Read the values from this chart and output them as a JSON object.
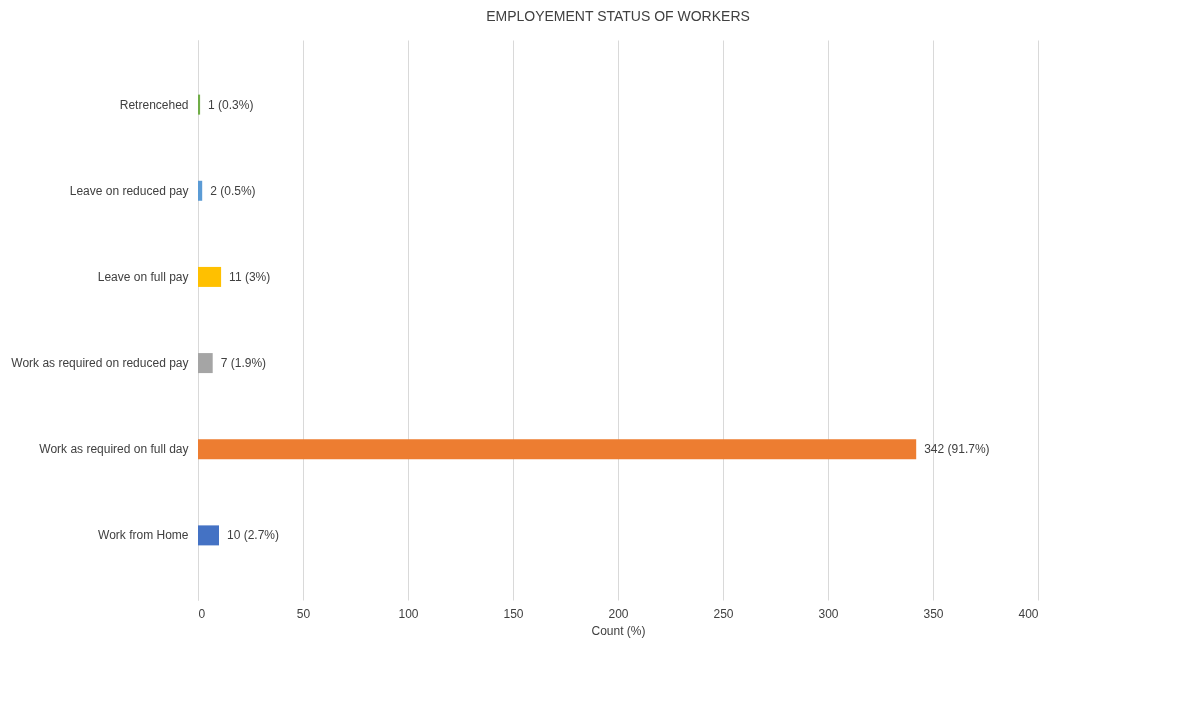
{
  "chart_data": {
    "type": "bar",
    "orientation": "horizontal",
    "title": "EMPLOYEMENT STATUS OF WORKERS",
    "xlabel": "Count (%)",
    "categories": [
      "Retrencehed",
      "Leave on reduced pay",
      "Leave on full pay",
      "Work as required on reduced pay",
      "Work as required on full day",
      "Work from Home"
    ],
    "values": [
      1,
      2,
      11,
      7,
      342,
      10
    ],
    "colors": [
      "#70ad47",
      "#5b9bd5",
      "#ffc000",
      "#a5a5a5",
      "#ed7d31",
      "#4472c4"
    ],
    "value_labels": [
      "1  (0.3%)",
      "2 (0.5%)",
      "11 (3%)",
      "7 (1.9%)",
      "342 (91.7%)",
      "10 (2.7%)"
    ],
    "xlim": [
      0,
      400
    ],
    "xticks": [
      0,
      50,
      100,
      150,
      200,
      250,
      300,
      350,
      400
    ],
    "grid": "x"
  }
}
